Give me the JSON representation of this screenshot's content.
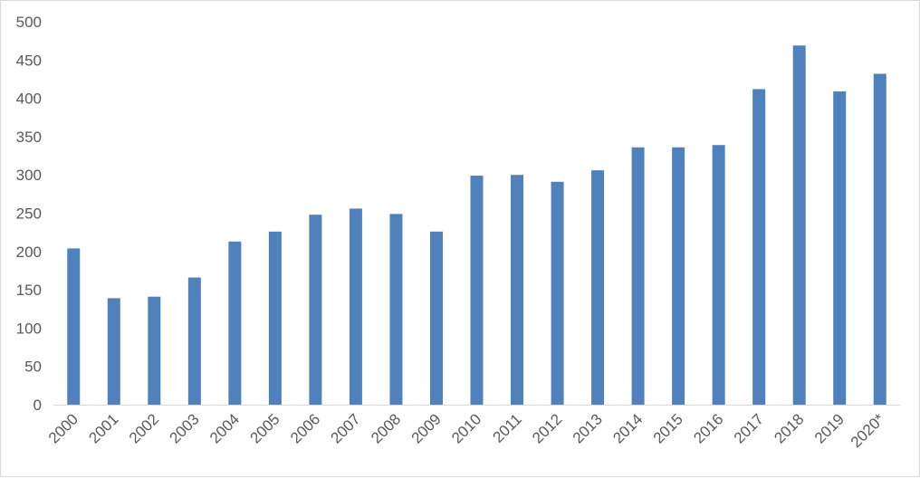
{
  "chart_data": {
    "type": "bar",
    "title": "",
    "xlabel": "",
    "ylabel": "",
    "categories": [
      "2000",
      "2001",
      "2002",
      "2003",
      "2004",
      "2005",
      "2006",
      "2007",
      "2008",
      "2009",
      "2010",
      "2011",
      "2012",
      "2013",
      "2014",
      "2015",
      "2016",
      "2017",
      "2018",
      "2019",
      "2020*"
    ],
    "values": [
      204,
      139,
      141,
      166,
      213,
      226,
      248,
      256,
      249,
      226,
      299,
      300,
      291,
      306,
      336,
      336,
      339,
      412,
      469,
      409,
      432
    ],
    "ylim": [
      0,
      500
    ],
    "yticks": [
      "0",
      "50",
      "100",
      "150",
      "200",
      "250",
      "300",
      "350",
      "400",
      "450",
      "500"
    ],
    "grid": false,
    "legend": "none",
    "bar_color": "#4f81bd",
    "axis_color": "#d9d9d9",
    "text_color": "#595959"
  }
}
